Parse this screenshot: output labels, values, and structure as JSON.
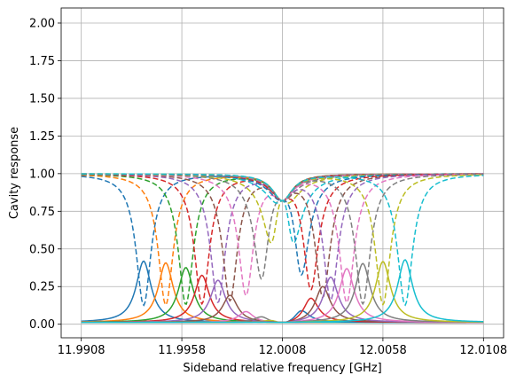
{
  "chart_data": {
    "type": "line",
    "title": "",
    "xlabel": "Sideband relative frequency [GHz]",
    "ylabel": "Cavity response",
    "xlim": [
      11.9898,
      12.0118
    ],
    "ylim": [
      -0.09,
      2.1
    ],
    "x_ticks": [
      11.9908,
      11.9958,
      12.0008,
      12.0058,
      12.0108
    ],
    "x_tick_labels": [
      "11.9908",
      "11.9958",
      "12.0008",
      "12.0058",
      "12.0108"
    ],
    "y_ticks": [
      0.0,
      0.25,
      0.5,
      0.75,
      1.0,
      1.25,
      1.5,
      1.75,
      2.0
    ],
    "y_tick_labels": [
      "0.00",
      "0.25",
      "0.50",
      "0.75",
      "1.00",
      "1.25",
      "1.50",
      "1.75",
      "2.00"
    ],
    "grid": true,
    "legend": "none",
    "model": {
      "cavity_center": 12.0008,
      "cavity_width": 0.0006,
      "sideband_width": 0.00045
    },
    "series": [
      {
        "sideband_center": 11.9939,
        "peak": 0.41,
        "color": "#1f77b4"
      },
      {
        "sideband_center": 11.995,
        "peak": 0.4,
        "color": "#ff7f0e"
      },
      {
        "sideband_center": 11.996,
        "peak": 0.37,
        "color": "#2ca02c"
      },
      {
        "sideband_center": 11.9968,
        "peak": 0.32,
        "color": "#d62728"
      },
      {
        "sideband_center": 11.9976,
        "peak": 0.29,
        "color": "#9467bd"
      },
      {
        "sideband_center": 11.9982,
        "peak": 0.19,
        "color": "#8c564b"
      },
      {
        "sideband_center": 11.999,
        "peak": 0.08,
        "color": "#e377c2"
      },
      {
        "sideband_center": 11.9998,
        "peak": 0.05,
        "color": "#7f7f7f"
      },
      {
        "sideband_center": 12.0004,
        "peak": 0.03,
        "color": "#bcbd22"
      },
      {
        "sideband_center": 12.0012,
        "peak": 0.03,
        "color": "#17becf"
      },
      {
        "sideband_center": 12.0017,
        "peak": 0.11,
        "color": "#1f77b4"
      },
      {
        "sideband_center": 12.0022,
        "peak": 0.19,
        "color": "#d62728"
      },
      {
        "sideband_center": 12.0028,
        "peak": 0.26,
        "color": "#8c564b"
      },
      {
        "sideband_center": 12.0032,
        "peak": 0.32,
        "color": "#9467bd"
      },
      {
        "sideband_center": 12.004,
        "peak": 0.37,
        "color": "#e377c2"
      },
      {
        "sideband_center": 12.0048,
        "peak": 0.4,
        "color": "#7f7f7f"
      },
      {
        "sideband_center": 12.0058,
        "peak": 0.41,
        "color": "#bcbd22"
      },
      {
        "sideband_center": 12.0069,
        "peak": 0.42,
        "color": "#17becf"
      }
    ]
  }
}
